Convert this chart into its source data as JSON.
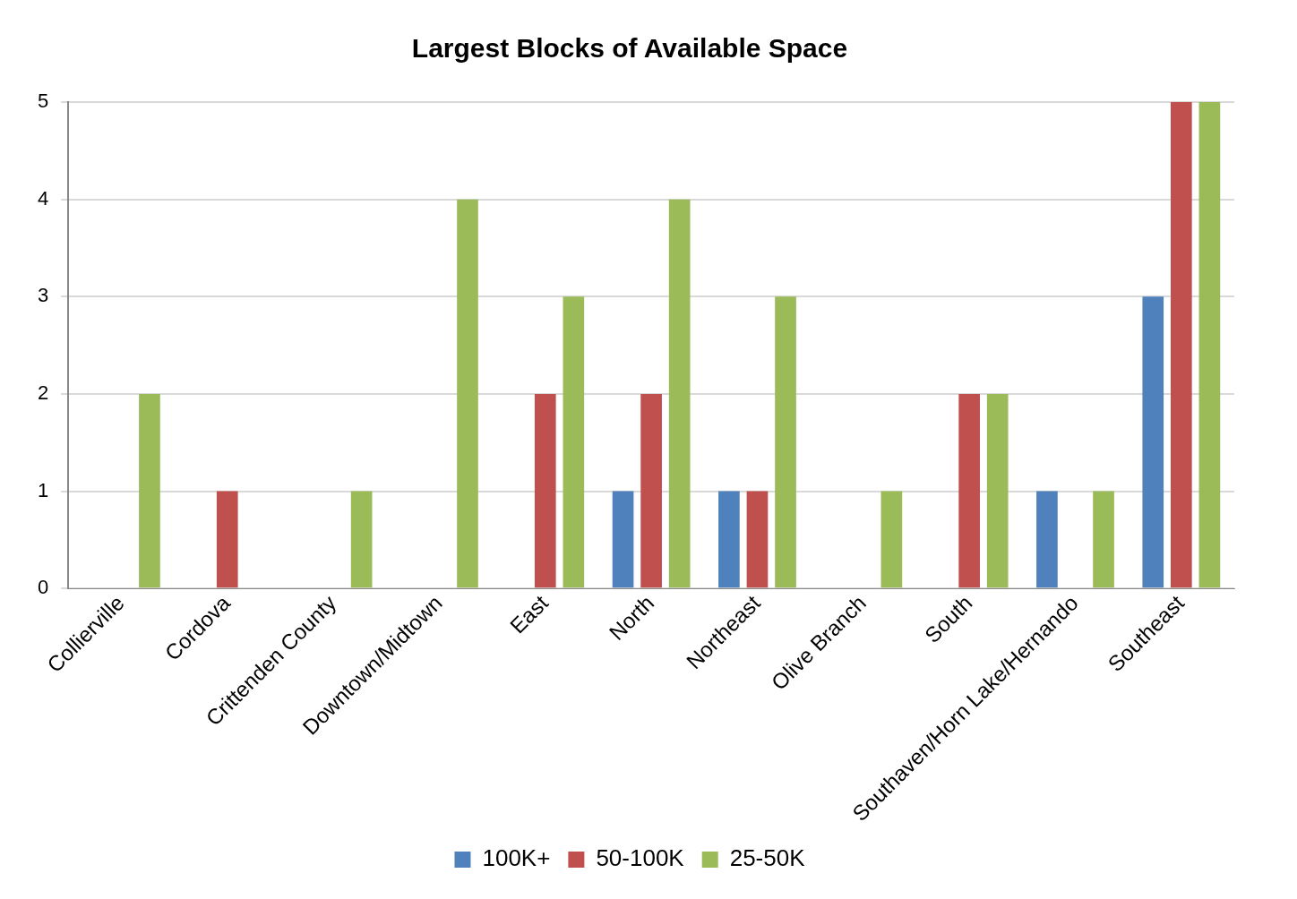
{
  "chart_data": {
    "type": "bar",
    "title": "Largest Blocks of Available Space",
    "categories": [
      "Collierville",
      "Cordova",
      "Crittenden County",
      "Downtown/Midtown",
      "East",
      "North",
      "Northeast",
      "Olive Branch",
      "South",
      "Southaven/Horn Lake/Hernando",
      "Southeast"
    ],
    "series": [
      {
        "name": "100K+",
        "color": "#4f81bd",
        "values": [
          0,
          0,
          0,
          0,
          0,
          1,
          1,
          0,
          0,
          1,
          3
        ]
      },
      {
        "name": "50-100K",
        "color": "#c0504d",
        "values": [
          0,
          1,
          0,
          0,
          2,
          2,
          1,
          0,
          2,
          0,
          5
        ]
      },
      {
        "name": "25-50K",
        "color": "#9bbb59",
        "values": [
          2,
          0,
          1,
          4,
          3,
          4,
          3,
          1,
          2,
          1,
          5
        ]
      }
    ],
    "ylim": [
      0,
      5
    ],
    "yticks": [
      0,
      1,
      2,
      3,
      4,
      5
    ],
    "grid": "y",
    "legend": "bottom"
  }
}
